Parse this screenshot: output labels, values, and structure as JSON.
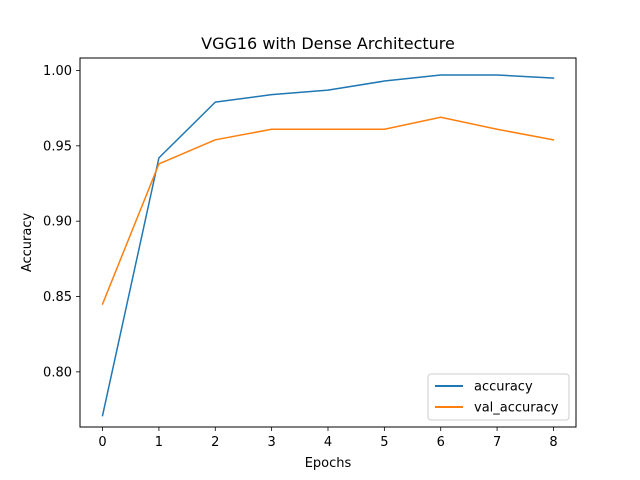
{
  "chart_data": {
    "type": "line",
    "title": "VGG16 with Dense Architecture",
    "xlabel": "Epochs",
    "ylabel": "Accuracy",
    "x": [
      0,
      1,
      2,
      3,
      4,
      5,
      6,
      7,
      8
    ],
    "xlim": [
      -0.4,
      8.4
    ],
    "ylim": [
      0.7634,
      1.0083
    ],
    "xticks": [
      0,
      1,
      2,
      3,
      4,
      5,
      6,
      7,
      8
    ],
    "yticks": [
      0.8,
      0.85,
      0.9,
      0.95,
      1.0
    ],
    "ytick_labels": [
      "0.80",
      "0.85",
      "0.90",
      "0.95",
      "1.00"
    ],
    "grid": false,
    "legend": "lower-right",
    "series": [
      {
        "name": "accuracy",
        "color": "#1f77b4",
        "values": [
          0.771,
          0.942,
          0.979,
          0.984,
          0.987,
          0.993,
          0.997,
          0.997,
          0.995
        ]
      },
      {
        "name": "val_accuracy",
        "color": "#ff7f0e",
        "values": [
          0.845,
          0.938,
          0.954,
          0.961,
          0.961,
          0.961,
          0.969,
          0.961,
          0.954
        ]
      }
    ]
  }
}
